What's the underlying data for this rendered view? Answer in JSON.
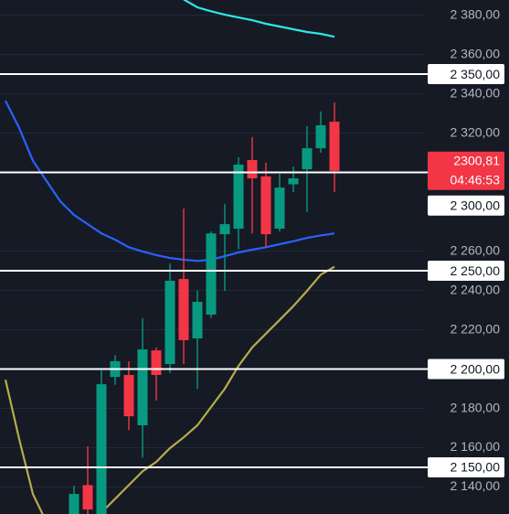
{
  "chart_data": {
    "type": "candlestick",
    "x": [
      0,
      1,
      2,
      3,
      4,
      5,
      6,
      7,
      8,
      9,
      10,
      11,
      12,
      13,
      14,
      15,
      16,
      17,
      18,
      19
    ],
    "open": [
      2126,
      2141,
      2126,
      2196,
      2197,
      2171.4,
      2209.5,
      2202.6,
      2245.8,
      2215.6,
      2227.7,
      2268.6,
      2271.4,
      2306.3,
      2298,
      2271.4,
      2294,
      2301.6,
      2312.3,
      2325.8
    ],
    "high": [
      2140.7,
      2160.7,
      2199.3,
      2207,
      2204,
      2225.8,
      2211,
      2253.7,
      2281.6,
      2240,
      2270,
      2284,
      2307.7,
      2318,
      2305,
      2299.3,
      2303,
      2323.5,
      2331,
      2335.6
    ],
    "low": [
      2126,
      2126,
      2126,
      2192,
      2169,
      2155,
      2184,
      2198,
      2202.6,
      2190,
      2226,
      2239.8,
      2261,
      2269,
      2262,
      2270,
      2290,
      2279.8,
      2310,
      2290
    ],
    "close": [
      2136.5,
      2128.6,
      2192.3,
      2204,
      2176,
      2210,
      2197,
      2244.9,
      2214.7,
      2234.2,
      2269,
      2273.7,
      2304,
      2297,
      2268.6,
      2292.3,
      2297,
      2312.3,
      2324,
      2300.81
    ],
    "up_color": "#089981",
    "down_color": "#f23645",
    "xlim": [
      -5.4,
      25.6
    ],
    "ylim": [
      2126.3,
      2387.7
    ],
    "yticks": [
      {
        "value": 2380,
        "label": "2 380,00"
      },
      {
        "value": 2360,
        "label": "2 360,00"
      },
      {
        "value": 2340,
        "label": "2 340,00"
      },
      {
        "value": 2320,
        "label": "2 320,00"
      },
      {
        "value": 2260,
        "label": "2 260,00"
      },
      {
        "value": 2240,
        "label": "2 240,00"
      },
      {
        "value": 2220,
        "label": "2 220,00"
      },
      {
        "value": 2180,
        "label": "2 180,00"
      },
      {
        "value": 2160,
        "label": "2 160,00"
      },
      {
        "value": 2140,
        "label": "2 140,00"
      }
    ],
    "grid": true,
    "lines": [
      {
        "color": "#2ee6e6",
        "x": [
          8,
          9,
          10,
          11,
          12,
          13,
          14,
          15,
          16,
          17,
          18,
          19
        ],
        "values": [
          2388,
          2384,
          2382,
          2380.2,
          2378.8,
          2377.4,
          2375.6,
          2374.2,
          2372.8,
          2371.4,
          2370.5,
          2369
        ]
      },
      {
        "color": "#2962ff",
        "x": [
          -5,
          -4,
          -3,
          -2,
          -1,
          0,
          1,
          2,
          3,
          4,
          5,
          6,
          7,
          8,
          9,
          10,
          11,
          12,
          13,
          14,
          15,
          16,
          17,
          18,
          19
        ],
        "values": [
          2336.5,
          2322.6,
          2306,
          2295.6,
          2285.3,
          2278.4,
          2273.7,
          2269,
          2265.8,
          2262,
          2259.8,
          2258,
          2256.5,
          2255.6,
          2255,
          2255.6,
          2257.4,
          2259.3,
          2260.7,
          2262,
          2263.5,
          2265,
          2266.7,
          2268,
          2269
        ]
      },
      {
        "color": "#b5ad4a",
        "x": [
          -5,
          -4,
          -3,
          -2,
          -1,
          0,
          1,
          2,
          3,
          4,
          5,
          6,
          7,
          8,
          9,
          10,
          11,
          12,
          13,
          14,
          15,
          16,
          17,
          18,
          19
        ],
        "values": [
          2194.6,
          2164.4,
          2136.5,
          2122,
          2118,
          2117,
          2120,
          2127,
          2134,
          2141,
          2148,
          2152.8,
          2159.8,
          2165.3,
          2171.4,
          2180.7,
          2190,
          2201.6,
          2211,
          2218,
          2225,
          2232,
          2239.8,
          2248,
          2252
        ]
      }
    ],
    "levels": [
      {
        "value": 2350,
        "label": "2 350,00"
      },
      {
        "value": 2300,
        "label": "2 300,00"
      },
      {
        "value": 2250,
        "label": "2 250,00"
      },
      {
        "value": 2200,
        "label": "2 200,00"
      },
      {
        "value": 2150,
        "label": "2 150,00"
      }
    ],
    "level_color": "#ffffff",
    "last_price": {
      "value": 2300.81,
      "label": "2300,81",
      "countdown": "04:46:53",
      "color": "#f23645"
    }
  }
}
